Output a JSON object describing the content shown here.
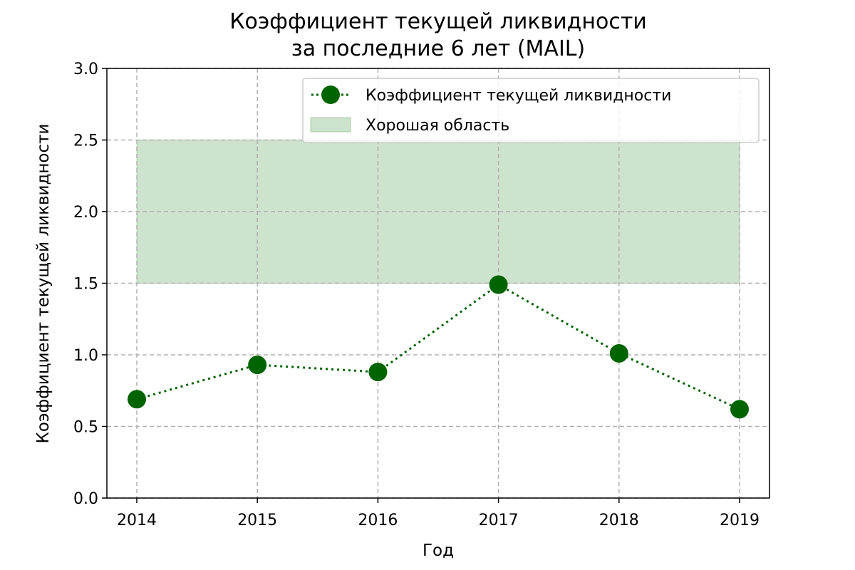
{
  "chart_data": {
    "type": "line",
    "title_line1": "Коэффициент текущей ликвидности",
    "title_line2": "за последние 6 лет (MAIL)",
    "xlabel": "Год",
    "ylabel": "Коэффициент текущей ликвидности",
    "categories": [
      "2014",
      "2015",
      "2016",
      "2017",
      "2018",
      "2019"
    ],
    "series": [
      {
        "name": "Коэффициент текущей ликвидности",
        "values": [
          0.69,
          0.93,
          0.88,
          1.49,
          1.01,
          0.62
        ],
        "color": "#006400",
        "line_style": "dotted",
        "marker": "circle"
      }
    ],
    "band": {
      "name": "Хорошая область",
      "y_from": 1.5,
      "y_to": 2.5,
      "color": "#2e8b2e"
    },
    "ylim": [
      0,
      3.0
    ],
    "yticks": [
      "0.0",
      "0.5",
      "1.0",
      "1.5",
      "2.0",
      "2.5",
      "3.0"
    ],
    "grid": true,
    "legend_position": "top-right"
  }
}
